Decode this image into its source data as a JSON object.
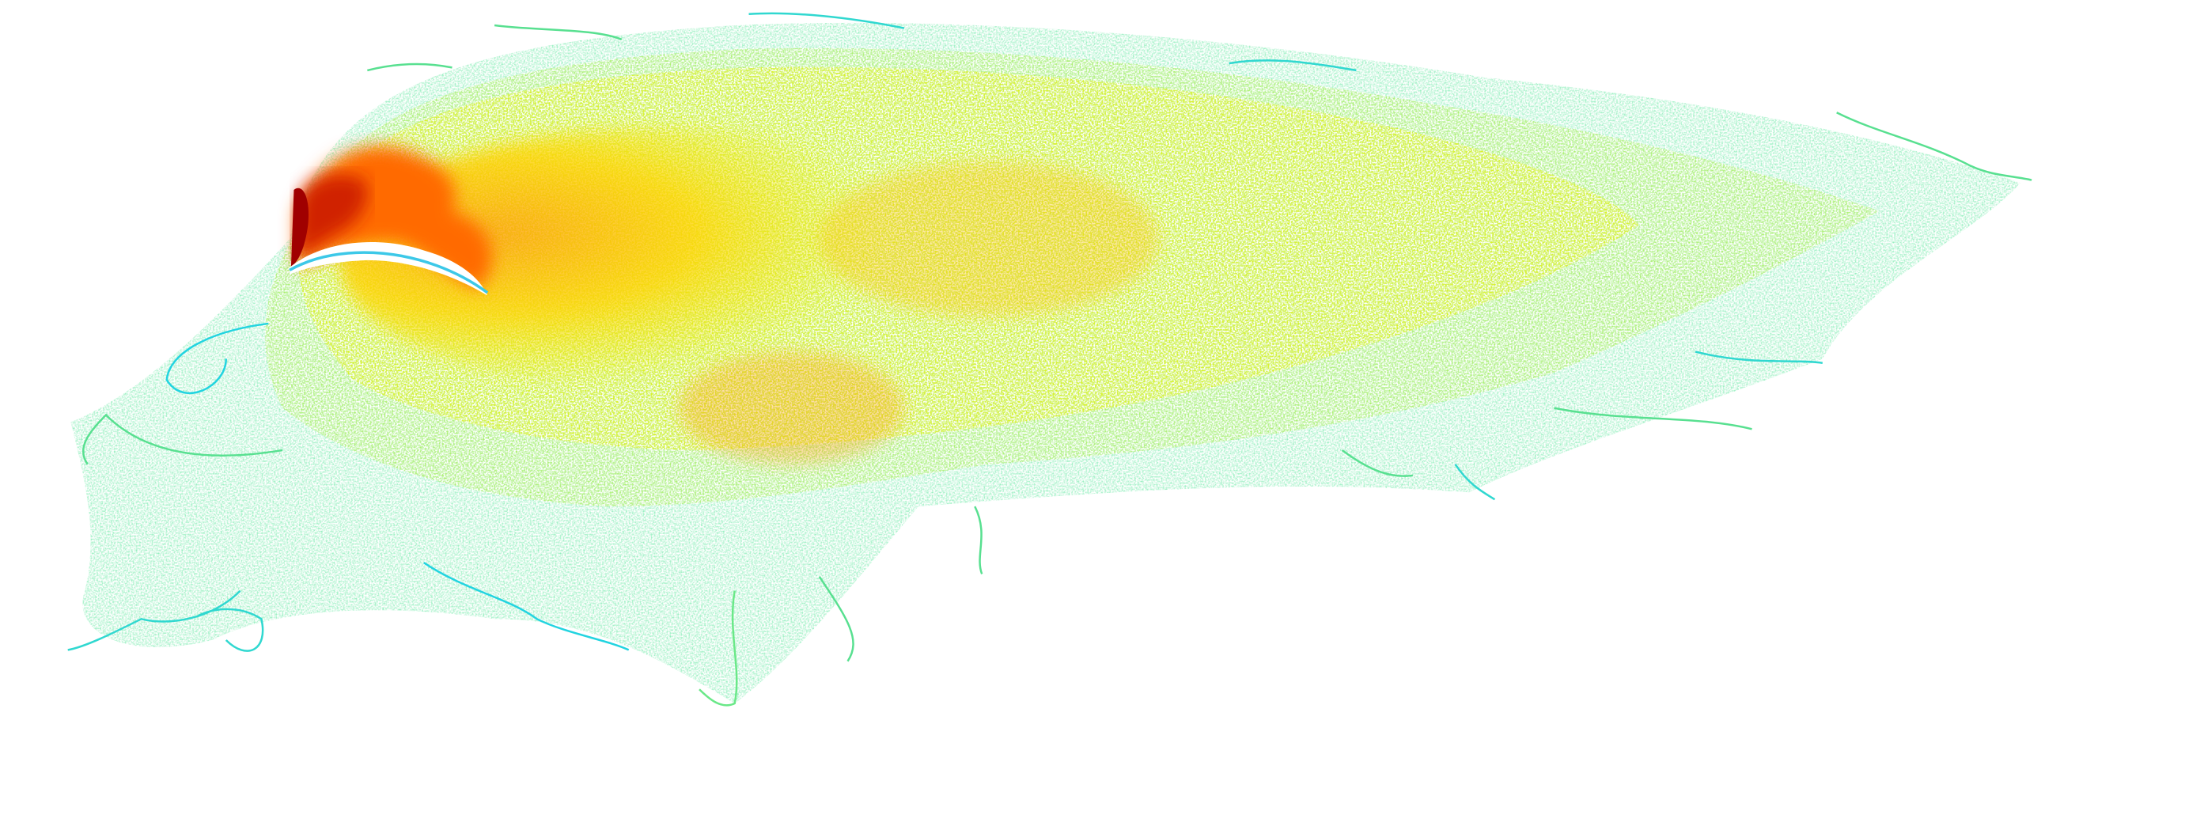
{
  "image": {
    "subject": "wake-streamlines-visualization",
    "background_color": "#ffffff",
    "colormap": [
      "#00d8e8",
      "#4be8b0",
      "#a8f048",
      "#f0f000",
      "#ffd400",
      "#ffa000",
      "#ff6a00",
      "#e02000",
      "#b00000"
    ]
  }
}
